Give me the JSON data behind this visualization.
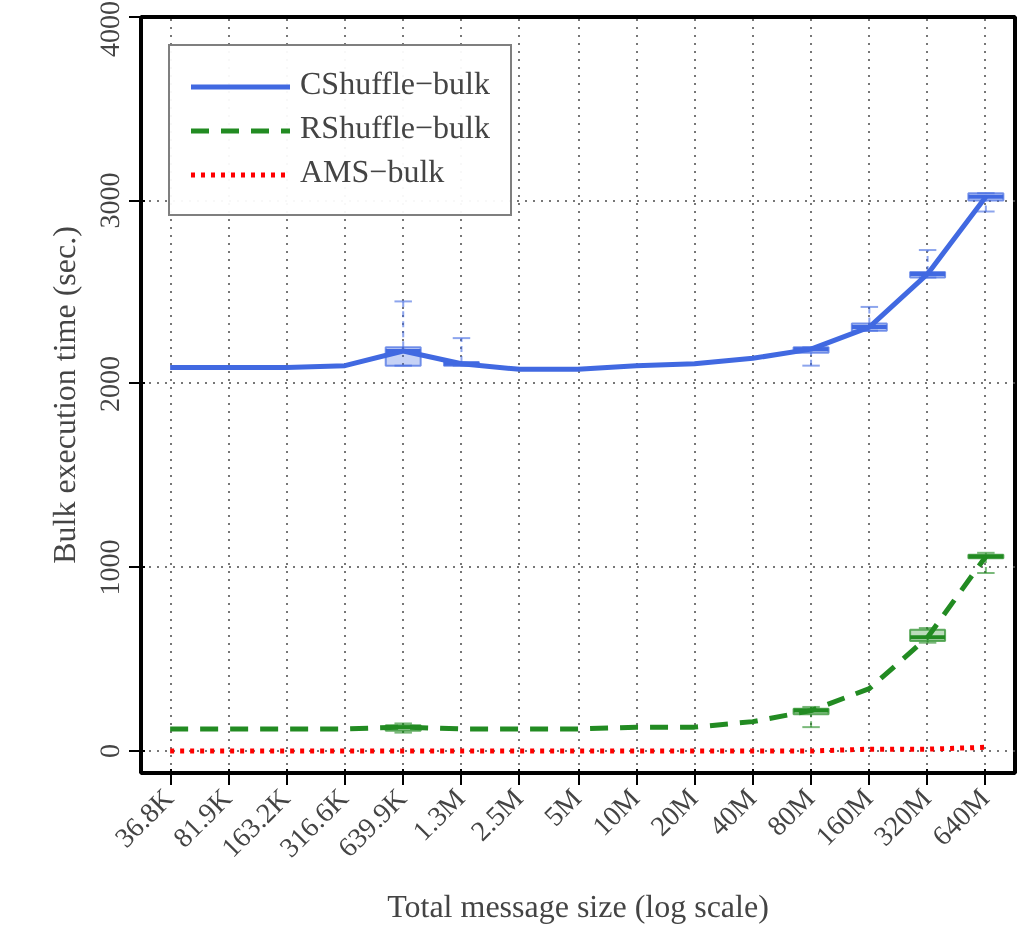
{
  "chart_data": {
    "type": "line",
    "xlabel": "Total message size (log scale)",
    "ylabel": "Bulk execution time (sec.)",
    "categories": [
      "36.8K",
      "81.9K",
      "163.2K",
      "316.6K",
      "639.9K",
      "1.3M",
      "2.5M",
      "5M",
      "10M",
      "20M",
      "40M",
      "80M",
      "160M",
      "320M",
      "640M"
    ],
    "ylim": [
      -120,
      4000
    ],
    "yticks": [
      0,
      1000,
      2000,
      3000,
      4000
    ],
    "grid": true,
    "legend": "top left",
    "series": [
      {
        "type": "box",
        "color": "#4169e1",
        "boxes": [
          null,
          null,
          null,
          null,
          {
            "low": 2100,
            "q1": 2100,
            "median": 2180,
            "q3": 2200,
            "high": 2450
          },
          {
            "low": 2100,
            "q1": 2100,
            "median": 2110,
            "q3": 2120,
            "high": 2250
          },
          null,
          null,
          null,
          null,
          null,
          {
            "low": 2100,
            "q1": 2170,
            "median": 2190,
            "q3": 2200,
            "high": 2200
          },
          {
            "low": 2290,
            "q1": 2290,
            "median": 2310,
            "q3": 2330,
            "high": 2420
          },
          {
            "low": 2580,
            "q1": 2580,
            "median": 2600,
            "q3": 2610,
            "high": 2730
          },
          {
            "low": 2940,
            "q1": 3000,
            "median": 3020,
            "q3": 3040,
            "high": 3040
          }
        ]
      },
      {
        "type": "box",
        "color": "#228b22",
        "boxes": [
          null,
          null,
          null,
          null,
          {
            "low": 100,
            "q1": 110,
            "median": 130,
            "q3": 140,
            "high": 150
          },
          null,
          null,
          null,
          null,
          null,
          null,
          {
            "low": 130,
            "q1": 200,
            "median": 220,
            "q3": 230,
            "high": 240
          },
          null,
          {
            "low": 590,
            "q1": 600,
            "median": 620,
            "q3": 660,
            "high": 670
          },
          {
            "low": 970,
            "q1": 1050,
            "median": 1060,
            "q3": 1070,
            "high": 1080
          }
        ]
      },
      {
        "name": "CShuffle−bulk",
        "color": "#4169e1",
        "line_style": "solid",
        "values": [
          2090,
          2090,
          2090,
          2100,
          2180,
          2110,
          2080,
          2080,
          2100,
          2110,
          2140,
          2190,
          2310,
          2600,
          3020
        ]
      },
      {
        "name": "RShuffle−bulk",
        "color": "#228b22",
        "line_style": "dashed",
        "values": [
          120,
          120,
          120,
          120,
          130,
          120,
          120,
          120,
          130,
          130,
          160,
          220,
          340,
          620,
          1060
        ]
      },
      {
        "name": "AMS−bulk",
        "color": "#ff0000",
        "line_style": "dotted",
        "values": [
          0,
          0,
          0,
          0,
          0,
          0,
          0,
          0,
          0,
          0,
          0,
          0,
          10,
          10,
          20
        ]
      }
    ]
  }
}
